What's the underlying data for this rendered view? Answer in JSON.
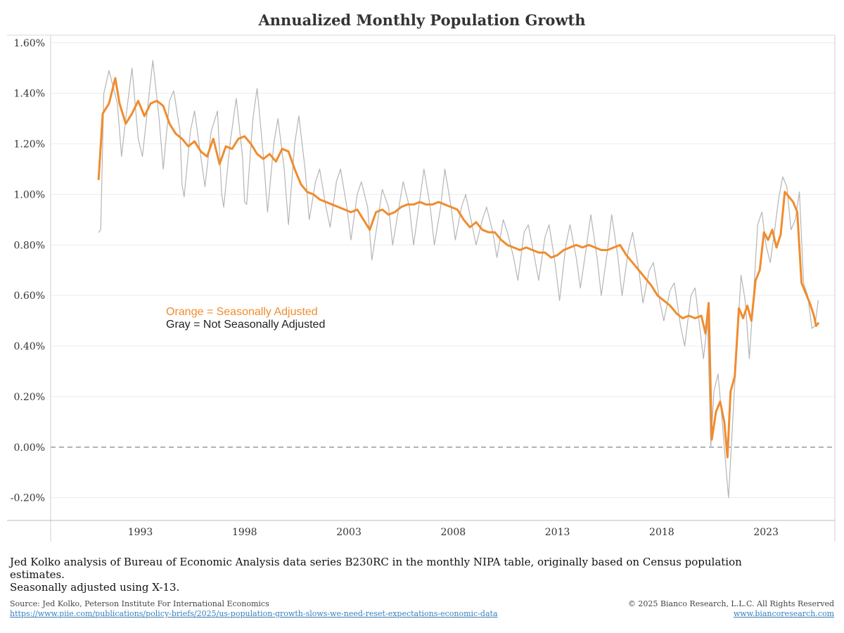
{
  "title": "Annualized Monthly Population Growth",
  "legend": {
    "sa_label": "Orange = Seasonally Adjusted",
    "nsa_label": "Gray = Not Seasonally Adjusted"
  },
  "note": {
    "line1": "Jed Kolko analysis of Bureau of Economic Analysis data series B230RC in the monthly NIPA table, originally based on Census population estimates.",
    "line2": "Seasonally adjusted using X-13."
  },
  "footer": {
    "source": "Source: Jed Kolko, Peterson Institute For International Economics",
    "source_url": "https://www.piie.com/publications/policy-briefs/2025/us-population-growth-slows-we-need-reset-expectations-economic-data",
    "copyright": "© 2025 Bianco Research, L.L.C. All Rights Reserved",
    "site": "www.biancoresearch.com"
  },
  "colors": {
    "seasonally_adjusted": "#f08c2e",
    "not_seasonally_adjusted": "#b5b5b5",
    "zero_line": "#999999"
  },
  "chart_data": {
    "type": "line",
    "title": "Annualized Monthly Population Growth",
    "xlabel": "",
    "ylabel": "",
    "y_tick_labels": [
      "-0.20%",
      "0.00%",
      "0.20%",
      "0.40%",
      "0.60%",
      "0.80%",
      "1.00%",
      "1.20%",
      "1.40%",
      "1.60%"
    ],
    "y_ticks": [
      -0.2,
      0.0,
      0.2,
      0.4,
      0.6,
      0.8,
      1.0,
      1.2,
      1.4,
      1.6
    ],
    "x_tick_labels": [
      "1993",
      "1998",
      "2003",
      "2008",
      "2013",
      "2018",
      "2023"
    ],
    "x_ticks": [
      1993,
      1998,
      2003,
      2008,
      2013,
      2018,
      2023
    ],
    "xlim": [
      1988.7,
      2026.3
    ],
    "ylim": [
      -0.29,
      1.63
    ],
    "grid": "horizontal",
    "zero_line": "dashed",
    "series": [
      {
        "name": "Seasonally Adjusted",
        "points": [
          [
            1991.0,
            1.06
          ],
          [
            1991.2,
            1.32
          ],
          [
            1991.5,
            1.36
          ],
          [
            1991.8,
            1.46
          ],
          [
            1992.0,
            1.36
          ],
          [
            1992.3,
            1.28
          ],
          [
            1992.6,
            1.32
          ],
          [
            1992.9,
            1.37
          ],
          [
            1993.2,
            1.31
          ],
          [
            1993.5,
            1.36
          ],
          [
            1993.8,
            1.37
          ],
          [
            1994.1,
            1.35
          ],
          [
            1994.4,
            1.28
          ],
          [
            1994.7,
            1.24
          ],
          [
            1995.0,
            1.22
          ],
          [
            1995.3,
            1.19
          ],
          [
            1995.6,
            1.21
          ],
          [
            1995.9,
            1.17
          ],
          [
            1996.2,
            1.15
          ],
          [
            1996.5,
            1.22
          ],
          [
            1996.8,
            1.12
          ],
          [
            1997.1,
            1.19
          ],
          [
            1997.4,
            1.18
          ],
          [
            1997.7,
            1.22
          ],
          [
            1998.0,
            1.23
          ],
          [
            1998.3,
            1.2
          ],
          [
            1998.6,
            1.16
          ],
          [
            1998.9,
            1.14
          ],
          [
            1999.2,
            1.16
          ],
          [
            1999.5,
            1.13
          ],
          [
            1999.8,
            1.18
          ],
          [
            2000.1,
            1.17
          ],
          [
            2000.4,
            1.1
          ],
          [
            2000.7,
            1.04
          ],
          [
            2001.0,
            1.01
          ],
          [
            2001.3,
            1.0
          ],
          [
            2001.6,
            0.98
          ],
          [
            2001.9,
            0.97
          ],
          [
            2002.2,
            0.96
          ],
          [
            2002.5,
            0.95
          ],
          [
            2002.8,
            0.94
          ],
          [
            2003.1,
            0.93
          ],
          [
            2003.4,
            0.94
          ],
          [
            2003.7,
            0.9
          ],
          [
            2004.0,
            0.86
          ],
          [
            2004.3,
            0.93
          ],
          [
            2004.6,
            0.94
          ],
          [
            2004.9,
            0.92
          ],
          [
            2005.2,
            0.93
          ],
          [
            2005.5,
            0.95
          ],
          [
            2005.8,
            0.96
          ],
          [
            2006.1,
            0.96
          ],
          [
            2006.4,
            0.97
          ],
          [
            2006.7,
            0.96
          ],
          [
            2007.0,
            0.96
          ],
          [
            2007.3,
            0.97
          ],
          [
            2007.6,
            0.96
          ],
          [
            2007.9,
            0.95
          ],
          [
            2008.2,
            0.94
          ],
          [
            2008.5,
            0.9
          ],
          [
            2008.8,
            0.87
          ],
          [
            2009.1,
            0.89
          ],
          [
            2009.4,
            0.86
          ],
          [
            2009.7,
            0.85
          ],
          [
            2010.0,
            0.85
          ],
          [
            2010.3,
            0.82
          ],
          [
            2010.6,
            0.8
          ],
          [
            2010.9,
            0.79
          ],
          [
            2011.2,
            0.78
          ],
          [
            2011.5,
            0.79
          ],
          [
            2011.8,
            0.78
          ],
          [
            2012.1,
            0.77
          ],
          [
            2012.4,
            0.77
          ],
          [
            2012.7,
            0.75
          ],
          [
            2013.0,
            0.76
          ],
          [
            2013.3,
            0.78
          ],
          [
            2013.6,
            0.79
          ],
          [
            2013.9,
            0.8
          ],
          [
            2014.2,
            0.79
          ],
          [
            2014.5,
            0.8
          ],
          [
            2014.8,
            0.79
          ],
          [
            2015.1,
            0.78
          ],
          [
            2015.4,
            0.78
          ],
          [
            2015.7,
            0.79
          ],
          [
            2016.0,
            0.8
          ],
          [
            2016.3,
            0.76
          ],
          [
            2016.6,
            0.73
          ],
          [
            2016.9,
            0.7
          ],
          [
            2017.2,
            0.67
          ],
          [
            2017.5,
            0.64
          ],
          [
            2017.8,
            0.6
          ],
          [
            2018.1,
            0.58
          ],
          [
            2018.4,
            0.56
          ],
          [
            2018.7,
            0.53
          ],
          [
            2019.0,
            0.51
          ],
          [
            2019.3,
            0.52
          ],
          [
            2019.6,
            0.51
          ],
          [
            2019.9,
            0.52
          ],
          [
            2020.1,
            0.45
          ],
          [
            2020.25,
            0.57
          ],
          [
            2020.4,
            0.03
          ],
          [
            2020.6,
            0.14
          ],
          [
            2020.8,
            0.18
          ],
          [
            2021.0,
            0.1
          ],
          [
            2021.15,
            -0.04
          ],
          [
            2021.3,
            0.22
          ],
          [
            2021.5,
            0.28
          ],
          [
            2021.7,
            0.55
          ],
          [
            2021.9,
            0.51
          ],
          [
            2022.1,
            0.56
          ],
          [
            2022.3,
            0.5
          ],
          [
            2022.5,
            0.66
          ],
          [
            2022.7,
            0.7
          ],
          [
            2022.9,
            0.85
          ],
          [
            2023.1,
            0.82
          ],
          [
            2023.3,
            0.86
          ],
          [
            2023.5,
            0.79
          ],
          [
            2023.7,
            0.84
          ],
          [
            2023.9,
            1.01
          ],
          [
            2024.1,
            0.99
          ],
          [
            2024.3,
            0.97
          ],
          [
            2024.5,
            0.93
          ],
          [
            2024.7,
            0.65
          ],
          [
            2024.9,
            0.61
          ],
          [
            2025.1,
            0.57
          ],
          [
            2025.3,
            0.52
          ],
          [
            2025.4,
            0.48
          ],
          [
            2025.5,
            0.49
          ]
        ]
      },
      {
        "name": "Not Seasonally Adjusted",
        "points": [
          [
            1991.0,
            0.85
          ],
          [
            1991.1,
            0.86
          ],
          [
            1991.25,
            1.4
          ],
          [
            1991.5,
            1.49
          ],
          [
            1991.9,
            1.36
          ],
          [
            1992.1,
            1.15
          ],
          [
            1992.3,
            1.3
          ],
          [
            1992.6,
            1.5
          ],
          [
            1992.9,
            1.22
          ],
          [
            1993.1,
            1.15
          ],
          [
            1993.4,
            1.38
          ],
          [
            1993.6,
            1.53
          ],
          [
            1993.9,
            1.3
          ],
          [
            1994.1,
            1.1
          ],
          [
            1994.4,
            1.37
          ],
          [
            1994.6,
            1.41
          ],
          [
            1994.9,
            1.25
          ],
          [
            1995.0,
            1.04
          ],
          [
            1995.1,
            0.99
          ],
          [
            1995.4,
            1.25
          ],
          [
            1995.6,
            1.33
          ],
          [
            1995.9,
            1.15
          ],
          [
            1996.1,
            1.03
          ],
          [
            1996.4,
            1.25
          ],
          [
            1996.7,
            1.33
          ],
          [
            1996.9,
            1.0
          ],
          [
            1997.0,
            0.95
          ],
          [
            1997.3,
            1.2
          ],
          [
            1997.6,
            1.38
          ],
          [
            1997.9,
            1.15
          ],
          [
            1998.0,
            0.97
          ],
          [
            1998.1,
            0.96
          ],
          [
            1998.4,
            1.3
          ],
          [
            1998.6,
            1.42
          ],
          [
            1998.9,
            1.15
          ],
          [
            1999.1,
            0.93
          ],
          [
            1999.4,
            1.2
          ],
          [
            1999.6,
            1.3
          ],
          [
            1999.9,
            1.1
          ],
          [
            2000.1,
            0.88
          ],
          [
            2000.4,
            1.2
          ],
          [
            2000.6,
            1.31
          ],
          [
            2000.9,
            1.1
          ],
          [
            2001.1,
            0.9
          ],
          [
            2001.4,
            1.05
          ],
          [
            2001.6,
            1.1
          ],
          [
            2001.9,
            0.95
          ],
          [
            2002.1,
            0.87
          ],
          [
            2002.4,
            1.05
          ],
          [
            2002.6,
            1.1
          ],
          [
            2002.9,
            0.95
          ],
          [
            2003.1,
            0.82
          ],
          [
            2003.4,
            1.0
          ],
          [
            2003.6,
            1.05
          ],
          [
            2003.9,
            0.95
          ],
          [
            2004.1,
            0.74
          ],
          [
            2004.3,
            0.85
          ],
          [
            2004.6,
            1.02
          ],
          [
            2004.9,
            0.95
          ],
          [
            2005.1,
            0.8
          ],
          [
            2005.4,
            0.95
          ],
          [
            2005.6,
            1.05
          ],
          [
            2005.9,
            0.95
          ],
          [
            2006.1,
            0.8
          ],
          [
            2006.4,
            0.98
          ],
          [
            2006.6,
            1.1
          ],
          [
            2006.9,
            0.95
          ],
          [
            2007.1,
            0.8
          ],
          [
            2007.4,
            0.95
          ],
          [
            2007.6,
            1.1
          ],
          [
            2007.9,
            0.95
          ],
          [
            2008.1,
            0.82
          ],
          [
            2008.4,
            0.95
          ],
          [
            2008.6,
            1.0
          ],
          [
            2008.9,
            0.88
          ],
          [
            2009.1,
            0.8
          ],
          [
            2009.4,
            0.9
          ],
          [
            2009.6,
            0.95
          ],
          [
            2009.9,
            0.85
          ],
          [
            2010.1,
            0.75
          ],
          [
            2010.4,
            0.9
          ],
          [
            2010.6,
            0.85
          ],
          [
            2010.9,
            0.75
          ],
          [
            2011.1,
            0.66
          ],
          [
            2011.4,
            0.85
          ],
          [
            2011.6,
            0.88
          ],
          [
            2011.9,
            0.75
          ],
          [
            2012.1,
            0.66
          ],
          [
            2012.4,
            0.83
          ],
          [
            2012.6,
            0.88
          ],
          [
            2012.9,
            0.72
          ],
          [
            2013.1,
            0.58
          ],
          [
            2013.4,
            0.8
          ],
          [
            2013.6,
            0.88
          ],
          [
            2013.9,
            0.75
          ],
          [
            2014.1,
            0.63
          ],
          [
            2014.4,
            0.8
          ],
          [
            2014.6,
            0.92
          ],
          [
            2014.9,
            0.75
          ],
          [
            2015.1,
            0.6
          ],
          [
            2015.4,
            0.78
          ],
          [
            2015.6,
            0.92
          ],
          [
            2015.9,
            0.75
          ],
          [
            2016.1,
            0.6
          ],
          [
            2016.4,
            0.78
          ],
          [
            2016.6,
            0.85
          ],
          [
            2016.9,
            0.7
          ],
          [
            2017.1,
            0.57
          ],
          [
            2017.4,
            0.7
          ],
          [
            2017.6,
            0.73
          ],
          [
            2017.9,
            0.58
          ],
          [
            2018.1,
            0.5
          ],
          [
            2018.4,
            0.62
          ],
          [
            2018.6,
            0.65
          ],
          [
            2018.9,
            0.48
          ],
          [
            2019.1,
            0.4
          ],
          [
            2019.4,
            0.6
          ],
          [
            2019.6,
            0.63
          ],
          [
            2019.9,
            0.42
          ],
          [
            2020.0,
            0.35
          ],
          [
            2020.2,
            0.5
          ],
          [
            2020.35,
            0.0
          ],
          [
            2020.5,
            0.22
          ],
          [
            2020.7,
            0.29
          ],
          [
            2020.9,
            0.1
          ],
          [
            2021.1,
            -0.1
          ],
          [
            2021.2,
            -0.2
          ],
          [
            2021.4,
            0.1
          ],
          [
            2021.6,
            0.4
          ],
          [
            2021.8,
            0.68
          ],
          [
            2022.0,
            0.58
          ],
          [
            2022.2,
            0.35
          ],
          [
            2022.4,
            0.6
          ],
          [
            2022.6,
            0.88
          ],
          [
            2022.8,
            0.93
          ],
          [
            2023.0,
            0.8
          ],
          [
            2023.2,
            0.73
          ],
          [
            2023.4,
            0.85
          ],
          [
            2023.6,
            0.98
          ],
          [
            2023.8,
            1.07
          ],
          [
            2024.0,
            1.03
          ],
          [
            2024.2,
            0.86
          ],
          [
            2024.4,
            0.9
          ],
          [
            2024.6,
            1.01
          ],
          [
            2024.8,
            0.65
          ],
          [
            2025.0,
            0.6
          ],
          [
            2025.2,
            0.47
          ],
          [
            2025.35,
            0.48
          ],
          [
            2025.5,
            0.58
          ]
        ]
      }
    ]
  }
}
